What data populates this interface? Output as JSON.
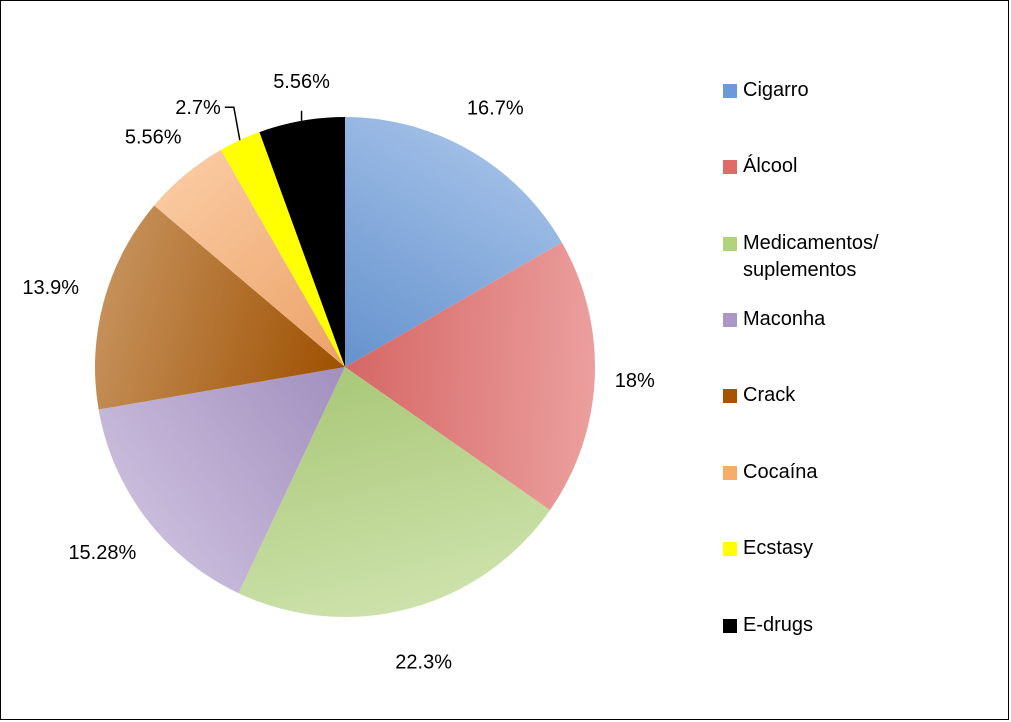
{
  "chart_data": {
    "type": "pie",
    "slices": [
      {
        "name": "Cigarro",
        "value": 16.7,
        "label": "16.7%",
        "color": "#6a9ad8"
      },
      {
        "name": "Álcool",
        "value": 18,
        "label": "18%",
        "color": "#e06c6a"
      },
      {
        "name": "Medicamentos/\nsuplementos",
        "value": 22.3,
        "label": "22.3%",
        "color": "#b2d27e"
      },
      {
        "name": "Maconha",
        "value": 15.28,
        "label": "15.28%",
        "color": "#ab96c8"
      },
      {
        "name": "Crack",
        "value": 13.9,
        "label": "13.9%",
        "color": "#a65400"
      },
      {
        "name": "Cocaína",
        "value": 5.56,
        "label": "5.56%",
        "color": "#f7ab6c"
      },
      {
        "name": "Ecstasy",
        "value": 2.7,
        "label": "2.7%",
        "color": "#ffff00"
      },
      {
        "name": "E-drugs",
        "value": 5.56,
        "label": "5.56%",
        "color": "#000000"
      }
    ],
    "legend_position": "right"
  }
}
